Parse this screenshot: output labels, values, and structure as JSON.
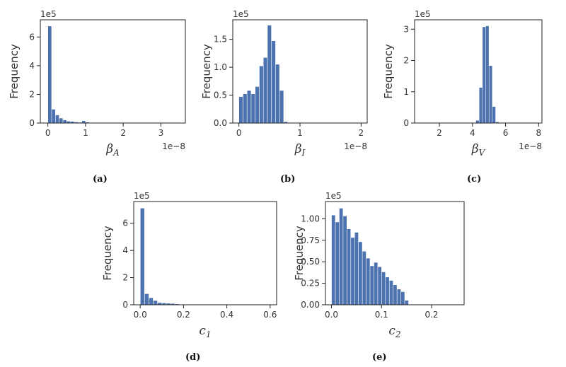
{
  "chart_data": [
    {
      "id": "a",
      "type": "bar",
      "panel_label": "(a)",
      "ylabel": "Frequency",
      "xlabel_base": "β",
      "xlabel_sub": "A",
      "y_multiplier": "1e5",
      "x_multiplier": "1e−8",
      "xlim": [
        -0.2,
        3.65
      ],
      "ylim": [
        0,
        7.2
      ],
      "xticks": [
        0,
        1,
        2,
        3
      ],
      "xtick_labels": [
        "0",
        "1",
        "2",
        "3"
      ],
      "yticks": [
        0,
        2,
        4,
        6
      ],
      "ytick_labels": [
        "0",
        "2",
        "4",
        "6"
      ],
      "bin_width": 0.1,
      "x": [
        0.05,
        0.15,
        0.25,
        0.35,
        0.45,
        0.55,
        0.65,
        0.75,
        0.85,
        0.95,
        1.05,
        1.15
      ],
      "values": [
        6.75,
        0.95,
        0.55,
        0.33,
        0.2,
        0.12,
        0.1,
        0.06,
        0.04,
        0.15,
        0.05,
        0.02
      ]
    },
    {
      "id": "b",
      "type": "bar",
      "panel_label": "(b)",
      "ylabel": "Frequency",
      "xlabel_base": "β",
      "xlabel_sub": "I",
      "y_multiplier": "1e5",
      "x_multiplier": "1e−8",
      "xlim": [
        -0.1,
        2.1
      ],
      "ylim": [
        0,
        1.85
      ],
      "xticks": [
        0,
        1,
        2
      ],
      "xtick_labels": [
        "0",
        "1",
        "2"
      ],
      "yticks": [
        0,
        0.5,
        1.0,
        1.5
      ],
      "ytick_labels": [
        "0.0",
        "0.5",
        "1.0",
        "1.5"
      ],
      "bin_width": 0.067,
      "x": [
        0.033,
        0.1,
        0.167,
        0.233,
        0.3,
        0.367,
        0.433,
        0.5,
        0.567,
        0.633,
        0.7,
        0.767
      ],
      "values": [
        0.47,
        0.52,
        0.58,
        0.52,
        0.65,
        1.02,
        1.17,
        1.75,
        1.47,
        1.05,
        0.58,
        0.02
      ]
    },
    {
      "id": "c",
      "type": "bar",
      "panel_label": "(c)",
      "ylabel": "Frequency",
      "xlabel_base": "β",
      "xlabel_sub": "V",
      "y_multiplier": "1e5",
      "x_multiplier": "1e−8",
      "xlim": [
        0.5,
        8.2
      ],
      "ylim": [
        0,
        3.3
      ],
      "xticks": [
        2,
        4,
        6,
        8
      ],
      "xtick_labels": [
        "2",
        "4",
        "6",
        "8"
      ],
      "yticks": [
        0,
        1,
        2,
        3
      ],
      "ytick_labels": [
        "0",
        "1",
        "2",
        "3"
      ],
      "bin_width": 0.2,
      "x": [
        4.3,
        4.5,
        4.7,
        4.9,
        5.1,
        5.3,
        5.5
      ],
      "values": [
        0.08,
        1.13,
        3.07,
        3.1,
        1.83,
        0.52,
        0.03
      ]
    },
    {
      "id": "d",
      "type": "bar",
      "panel_label": "(d)",
      "ylabel": "Frequency",
      "xlabel_base": "c",
      "xlabel_sub": "1",
      "y_multiplier": "1e5",
      "x_multiplier": "",
      "xlim": [
        -0.03,
        0.63
      ],
      "ylim": [
        0,
        7.6
      ],
      "xticks": [
        0,
        0.2,
        0.4,
        0.6
      ],
      "xtick_labels": [
        "0.0",
        "0.2",
        "0.4",
        "0.6"
      ],
      "yticks": [
        0,
        2,
        4,
        6
      ],
      "ytick_labels": [
        "0",
        "2",
        "4",
        "6"
      ],
      "bin_width": 0.02,
      "x": [
        0.01,
        0.03,
        0.05,
        0.07,
        0.09,
        0.11,
        0.13,
        0.15,
        0.17
      ],
      "values": [
        7.1,
        0.8,
        0.5,
        0.3,
        0.15,
        0.12,
        0.1,
        0.08,
        0.05
      ]
    },
    {
      "id": "e",
      "type": "bar",
      "panel_label": "(e)",
      "ylabel": "Frequency",
      "xlabel_base": "c",
      "xlabel_sub": "2",
      "y_multiplier": "1e5",
      "x_multiplier": "",
      "xlim": [
        -0.012,
        0.265
      ],
      "ylim": [
        0,
        1.2
      ],
      "xticks": [
        0,
        0.1,
        0.2
      ],
      "xtick_labels": [
        "0.0",
        "0.1",
        "0.2"
      ],
      "yticks": [
        0,
        0.25,
        0.5,
        0.75,
        1.0
      ],
      "ytick_labels": [
        "0.00",
        "0.25",
        "0.50",
        "0.75",
        "1.00"
      ],
      "bin_width": 0.0077,
      "x": [
        0.0039,
        0.0116,
        0.0193,
        0.027,
        0.0347,
        0.0424,
        0.0501,
        0.0578,
        0.0655,
        0.0732,
        0.0809,
        0.0886,
        0.0963,
        0.104,
        0.1117,
        0.1194,
        0.1271,
        0.1348,
        0.1425,
        0.1502
      ],
      "values": [
        1.04,
        0.96,
        1.12,
        1.03,
        0.88,
        0.78,
        0.84,
        0.73,
        0.62,
        0.54,
        0.45,
        0.49,
        0.44,
        0.38,
        0.32,
        0.28,
        0.23,
        0.18,
        0.15,
        0.05
      ]
    }
  ],
  "style": {
    "bar_color": "#4C72B0",
    "axis_color": "#222222",
    "text_color": "#333333"
  }
}
